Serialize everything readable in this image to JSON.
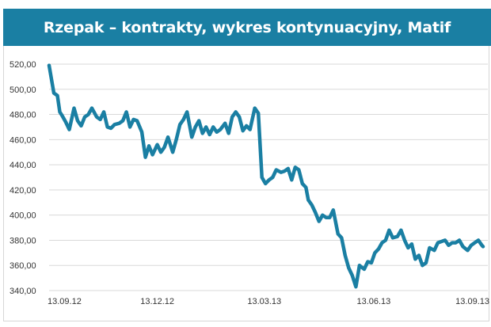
{
  "chart_data": {
    "type": "line",
    "title": "Rzepak – kontrakty, wykres kontynuacyjny, Matif",
    "xlabel": "",
    "ylabel": "",
    "ylim": [
      340,
      520
    ],
    "y_ticks": [
      "340,00",
      "360,00",
      "380,00",
      "400,00",
      "420,00",
      "440,00",
      "460,00",
      "480,00",
      "500,00",
      "520,00"
    ],
    "x_ticks": [
      "13.09.12",
      "13.12.12",
      "13.03.13",
      "13.06.13",
      "13.09.13"
    ],
    "grid": true,
    "line_color": "#1a7fa3",
    "x": [
      "2012-09-13",
      "2012-09-15",
      "2012-09-17",
      "2012-09-20",
      "2012-09-22",
      "2012-09-24",
      "2012-09-27",
      "2012-09-30",
      "2012-10-04",
      "2012-10-07",
      "2012-10-10",
      "2012-10-13",
      "2012-10-16",
      "2012-10-19",
      "2012-10-23",
      "2012-10-26",
      "2012-10-29",
      "2012-11-01",
      "2012-11-04",
      "2012-11-07",
      "2012-11-11",
      "2012-11-14",
      "2012-11-17",
      "2012-11-20",
      "2012-11-23",
      "2012-11-26",
      "2012-11-30",
      "2012-12-03",
      "2012-12-06",
      "2012-12-09",
      "2012-12-13",
      "2012-12-16",
      "2012-12-19",
      "2012-12-22",
      "2012-12-26",
      "2012-12-29",
      "2013-01-01",
      "2013-01-04",
      "2013-01-07",
      "2013-01-11",
      "2013-01-14",
      "2013-01-17",
      "2013-01-20",
      "2013-01-23",
      "2013-01-26",
      "2013-01-29",
      "2013-02-01",
      "2013-02-04",
      "2013-02-08",
      "2013-02-11",
      "2013-02-14",
      "2013-02-17",
      "2013-02-20",
      "2013-02-23",
      "2013-02-26",
      "2013-03-01",
      "2013-03-05",
      "2013-03-08",
      "2013-03-11",
      "2013-03-14",
      "2013-03-17",
      "2013-03-20",
      "2013-03-23",
      "2013-03-27",
      "2013-03-30",
      "2013-04-02",
      "2013-04-05",
      "2013-04-08",
      "2013-04-11",
      "2013-04-14",
      "2013-04-17",
      "2013-04-19",
      "2013-04-22",
      "2013-04-25",
      "2013-04-28",
      "2013-05-01",
      "2013-05-04",
      "2013-05-07",
      "2013-05-10",
      "2013-05-14",
      "2013-05-17",
      "2013-05-20",
      "2013-05-23",
      "2013-05-26",
      "2013-05-29",
      "2013-06-01",
      "2013-06-05",
      "2013-06-08",
      "2013-06-11",
      "2013-06-14",
      "2013-06-17",
      "2013-06-20",
      "2013-06-23",
      "2013-06-26",
      "2013-06-29",
      "2013-07-03",
      "2013-07-06",
      "2013-07-09",
      "2013-07-12",
      "2013-07-15",
      "2013-07-18",
      "2013-07-21",
      "2013-07-24",
      "2013-07-27",
      "2013-07-30",
      "2013-08-03",
      "2013-08-06",
      "2013-08-09",
      "2013-08-12",
      "2013-08-15",
      "2013-08-18",
      "2013-08-21",
      "2013-08-24",
      "2013-08-27",
      "2013-08-31",
      "2013-09-03",
      "2013-09-06",
      "2013-09-09",
      "2013-09-12",
      "2013-09-13"
    ],
    "values": [
      519,
      508,
      497,
      495,
      482,
      479,
      474,
      468,
      485,
      475,
      471,
      478,
      480,
      485,
      478,
      476,
      482,
      470,
      469,
      472,
      473,
      475,
      482,
      470,
      476,
      475,
      466,
      446,
      455,
      448,
      456,
      450,
      454,
      462,
      450,
      460,
      472,
      476,
      482,
      462,
      470,
      475,
      465,
      470,
      464,
      470,
      466,
      468,
      473,
      465,
      478,
      482,
      478,
      467,
      471,
      468,
      485,
      481,
      430,
      425,
      428,
      430,
      436,
      434,
      435,
      437,
      428,
      438,
      436,
      425,
      422,
      412,
      408,
      402,
      395,
      400,
      398,
      398,
      404,
      385,
      382,
      368,
      358,
      352,
      343,
      360,
      357,
      363,
      362,
      370,
      373,
      378,
      380,
      388,
      382,
      383,
      388,
      380,
      374,
      377,
      365,
      368,
      360,
      362,
      374,
      372,
      378,
      379,
      380,
      376,
      378,
      378,
      380,
      375,
      372,
      376,
      378,
      380,
      376,
      375
    ],
    "markers": [
      "13.09.12",
      "13.12.12",
      "13.03.13",
      "13.06.13",
      "13.09.13"
    ]
  }
}
